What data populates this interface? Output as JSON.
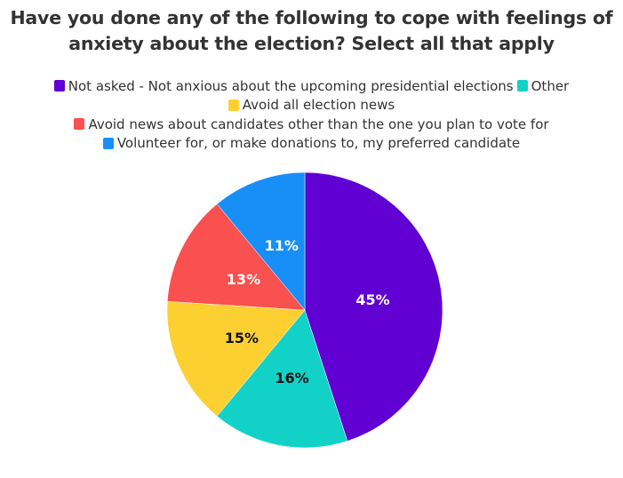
{
  "colors": {
    "not_asked": "#6100d2",
    "other": "#12d2c8",
    "avoid_all": "#fdd032",
    "avoid_candidates": "#f95050",
    "volunteer": "#188ff7"
  },
  "chart_data": {
    "type": "pie",
    "title_lines": [
      "Have you done any of the following to cope with feelings of",
      "anxiety about the election? Select all that apply"
    ],
    "legend_rows": [
      [
        0,
        1
      ],
      [
        2
      ],
      [
        3
      ],
      [
        4
      ]
    ],
    "legend_placement": "top",
    "slices": [
      {
        "name": "Not asked - Not anxious about the upcoming presidential elections",
        "value": 45,
        "label": "45%",
        "color": "#6100d2",
        "label_color": "#ffffff"
      },
      {
        "name": "Other",
        "value": 16,
        "label": "16%",
        "color": "#12d2c8",
        "label_color": "#111111"
      },
      {
        "name": "Avoid all election news",
        "value": 15,
        "label": "15%",
        "color": "#fdd032",
        "label_color": "#111111"
      },
      {
        "name": "Avoid news about candidates other than the one you plan to vote for",
        "value": 13,
        "label": "13%",
        "color": "#f95050",
        "label_color": "#ffffff"
      },
      {
        "name": "Volunteer for, or make donations to, my preferred candidate",
        "value": 11,
        "label": "11%",
        "color": "#188ff7",
        "label_color": "#ffffff"
      }
    ]
  }
}
